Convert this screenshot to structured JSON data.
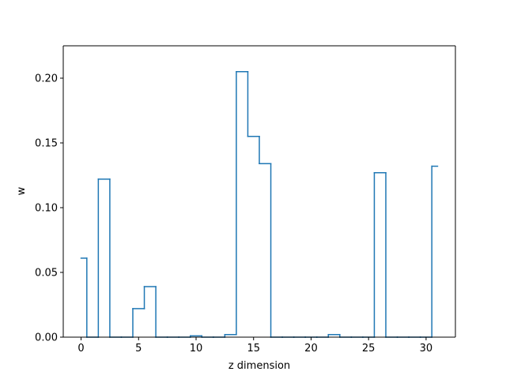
{
  "chart_data": {
    "type": "line",
    "subtype": "step",
    "title": "",
    "xlabel": "z dimension",
    "ylabel": "w",
    "xlim": [
      -1.55,
      32.55
    ],
    "ylim": [
      0,
      0.225
    ],
    "xticks": [
      0,
      5,
      10,
      15,
      20,
      25,
      30
    ],
    "yticks": [
      0.0,
      0.05,
      0.1,
      0.15,
      0.2
    ],
    "ytick_labels": [
      "0.00",
      "0.05",
      "0.10",
      "0.15",
      "0.20"
    ],
    "xtick_labels": [
      "0",
      "5",
      "10",
      "15",
      "20",
      "25",
      "30"
    ],
    "grid": false,
    "legend": "none",
    "series": [
      {
        "color": "#1f77b4",
        "x": [
          0,
          1,
          2,
          3,
          4,
          5,
          6,
          7,
          8,
          9,
          10,
          11,
          12,
          13,
          14,
          15,
          16,
          17,
          18,
          19,
          20,
          21,
          22,
          23,
          24,
          25,
          26,
          27,
          28,
          29,
          30,
          31
        ],
        "values": [
          0.061,
          0.0,
          0.122,
          0.0,
          0.0,
          0.022,
          0.039,
          0.0,
          0.0,
          0.0,
          0.001,
          0.0,
          0.0,
          0.002,
          0.205,
          0.155,
          0.134,
          0.0,
          0.0,
          0.0,
          0.0,
          0.0,
          0.002,
          0.0,
          0.0,
          0.0,
          0.127,
          0.0,
          0.0,
          0.0,
          0.0,
          0.132
        ]
      }
    ]
  }
}
